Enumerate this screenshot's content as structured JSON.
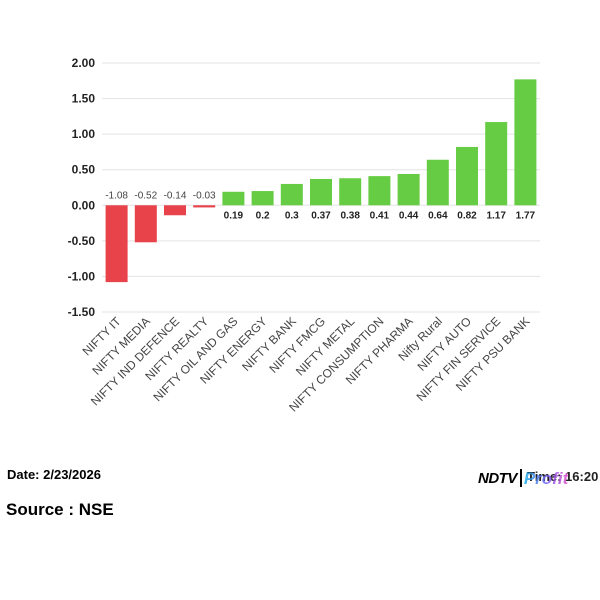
{
  "chart_data": {
    "type": "bar",
    "categories": [
      "NIFTY IT",
      "NIFTY MEDIA",
      "NIFTY IND DEFENCE",
      "NIFTY REALTY",
      "NIFTY OIL AND GAS",
      "NIFTY ENERGY",
      "NIFTY BANK",
      "NIFTY FMCG",
      "NIFTY METAL",
      "NIFTY CONSUMPTION",
      "NIFTY PHARMA",
      "Nifty Rural",
      "NIFTY AUTO",
      "NIFTY FIN SERVICE",
      "NIFTY PSU BANK"
    ],
    "values": [
      -1.08,
      -0.52,
      -0.14,
      -0.03,
      0.19,
      0.2,
      0.3,
      0.37,
      0.38,
      0.41,
      0.44,
      0.64,
      0.82,
      1.17,
      1.77
    ],
    "ylim": [
      -1.5,
      2.0
    ],
    "yticks": [
      "2.00",
      "1.50",
      "1.00",
      "0.50",
      "0.00",
      "-0.50",
      "-1.00",
      "-1.50"
    ],
    "grid": true,
    "colors": {
      "positive": "#66cc44",
      "negative": "#e8424a"
    }
  },
  "footer": {
    "date": "Date: 2/23/2026",
    "time": "Time: 16:20",
    "source": "Source : NSE"
  },
  "logo": {
    "wordmark": "NDTV",
    "sub": "Profit"
  }
}
